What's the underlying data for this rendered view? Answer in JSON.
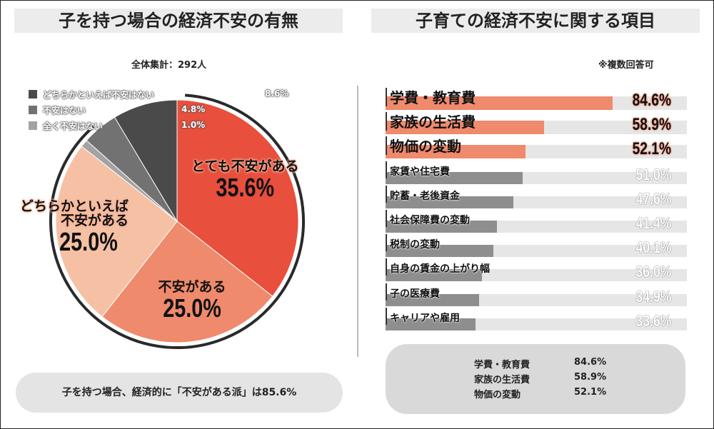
{
  "left": {
    "title": "子を持つ場合の経済不安の有無",
    "total": "全体集計：292人",
    "note": "子を持つ場合、経済的に「不安がある派」は85.6%"
  },
  "right": {
    "title": "子育ての経済不安に関する項目",
    "subnote": "※複数回答可"
  },
  "chart_data": [
    {
      "type": "pie",
      "title": "子を持つ場合の経済不安の有無",
      "slices": [
        {
          "label": "とても不安がある",
          "value": 35.6,
          "display": "35.6%",
          "color": "#e84f3d"
        },
        {
          "label": "不安がある",
          "value": 25.0,
          "display": "25.0%",
          "color": "#ef8a6c"
        },
        {
          "label": "どちらかといえば不安がある",
          "label_lines": [
            "どちらかといえば",
            "不安がある"
          ],
          "value": 25.0,
          "display": "25.0%",
          "color": "#f5c0a4"
        },
        {
          "label": "全く不安はない",
          "value": 1.0,
          "display": "1.0%",
          "color": "#a3a3a3"
        },
        {
          "label": "不安はない",
          "value": 4.8,
          "display": "4.8%",
          "color": "#727272"
        },
        {
          "label": "どちらかといえば不安はない",
          "value": 8.6,
          "display": "8.6%",
          "color": "#4a4a4a"
        }
      ]
    },
    {
      "type": "bar",
      "orientation": "horizontal",
      "title": "子育ての経済不安に関する項目",
      "highlight_color": "#ef8a6c",
      "base_color": "#8e8e8e",
      "categories": [
        "学費・教育費",
        "家族の生活費",
        "物価の変動",
        "家賃や住宅費",
        "貯蓄・老後資金",
        "社会保障費の変動",
        "税制の変動",
        "自身の賃金の上がり幅",
        "子の医療費",
        "キャリアや雇用"
      ],
      "values": [
        84.6,
        58.9,
        52.1,
        51.0,
        47.6,
        41.4,
        40.1,
        36.0,
        34.9,
        33.6
      ],
      "labels": [
        "84.6%",
        "58.9%",
        "52.1%",
        "51.0%",
        "47.6%",
        "41.4%",
        "40.1%",
        "36.0%",
        "34.9%",
        "33.6%"
      ],
      "highlighted": 3
    }
  ],
  "summary": [
    {
      "label": "学費・教育費",
      "value": "84.6%"
    },
    {
      "label": "家族の生活費",
      "value": "58.9%"
    },
    {
      "label": "物価の変動",
      "value": "52.1%"
    }
  ]
}
